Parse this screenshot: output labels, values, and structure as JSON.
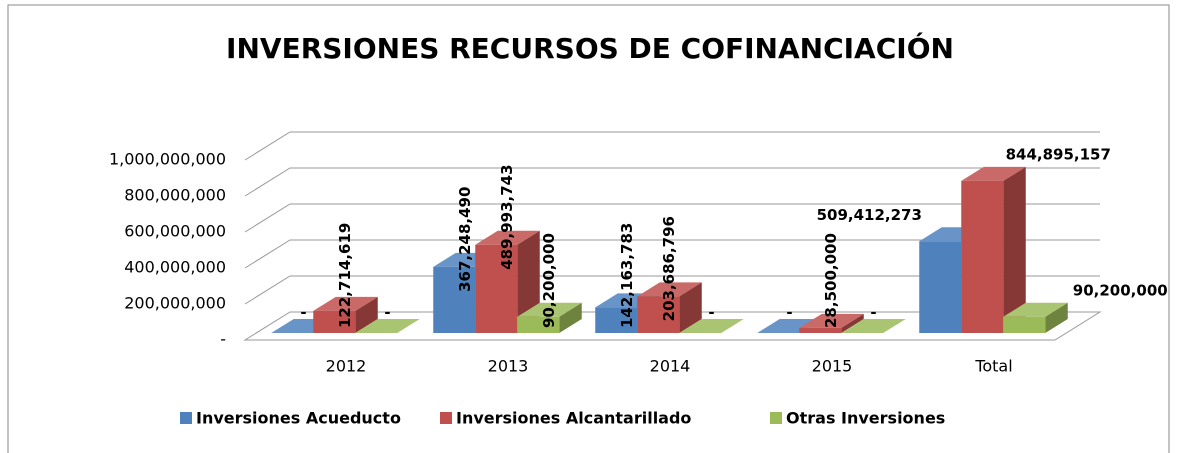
{
  "chart_data": {
    "type": "bar3d",
    "title": "INVERSIONES RECURSOS DE COFINANCIACIÓN",
    "categories": [
      "2012",
      "2013",
      "2014",
      "2015",
      "Total"
    ],
    "series": [
      {
        "name": "Inversiones Acueducto",
        "color": "#4f81bd",
        "values": [
          0,
          367248490,
          142163783,
          0,
          509412273
        ],
        "value_labels": [
          "-",
          "367,248,490",
          "142,163,783",
          "-",
          "509,412,273"
        ]
      },
      {
        "name": "Inversiones Alcantarillado",
        "color": "#c0504d",
        "values": [
          122714619,
          489993743,
          203686796,
          28500000,
          844895157
        ],
        "value_labels": [
          "122,714,619",
          "489,993,743",
          "203,686,796",
          "28,500,000",
          "844,895,157"
        ]
      },
      {
        "name": "Otras Inversiones",
        "color": "#9bbb59",
        "values": [
          0,
          90200000,
          0,
          0,
          90200000
        ],
        "value_labels": [
          "-",
          "90,200,000",
          "-",
          "-",
          "90,200,000"
        ]
      }
    ],
    "ylim": [
      0,
      1000000000
    ],
    "yticks": [
      {
        "value": 0,
        "label": "-"
      },
      {
        "value": 200000000,
        "label": "200,000,000"
      },
      {
        "value": 400000000,
        "label": "400,000,000"
      },
      {
        "value": 600000000,
        "label": "600,000,000"
      },
      {
        "value": 800000000,
        "label": "800,000,000"
      },
      {
        "value": 1000000000,
        "label": "1,000,000,000"
      }
    ],
    "grid": true,
    "legend": "bottom"
  }
}
